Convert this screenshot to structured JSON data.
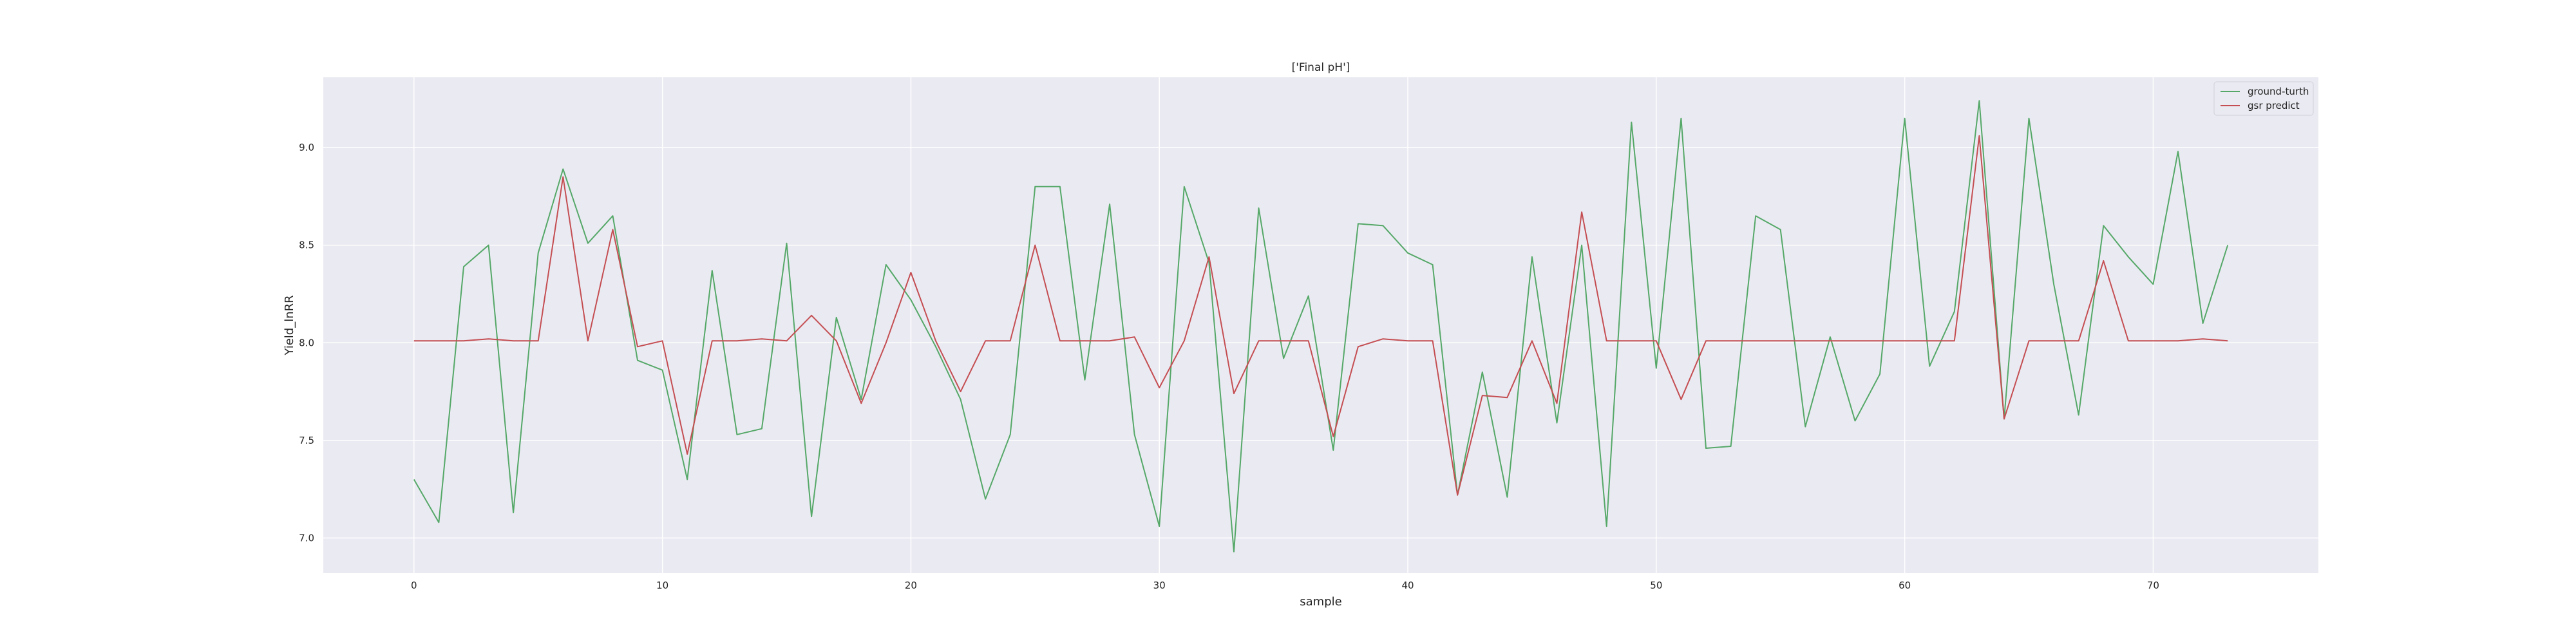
{
  "chart_data": {
    "type": "line",
    "title": "['Final pH']",
    "xlabel": "sample",
    "ylabel": "Yield_lnRR",
    "xlim": [
      -3.65,
      76.65
    ],
    "ylim": [
      6.82,
      9.36
    ],
    "xticks": [
      0,
      10,
      20,
      30,
      40,
      50,
      60,
      70
    ],
    "yticks": [
      7.0,
      7.5,
      8.0,
      8.5,
      9.0
    ],
    "xtick_labels": [
      "0",
      "10",
      "20",
      "30",
      "40",
      "50",
      "60",
      "70"
    ],
    "ytick_labels": [
      "7.0",
      "7.5",
      "8.0",
      "8.5",
      "9.0"
    ],
    "grid": true,
    "legend_position": "top-right",
    "series": [
      {
        "name": "ground-turth",
        "color": "#55a868",
        "values": [
          7.3,
          7.08,
          8.39,
          8.5,
          7.13,
          8.46,
          8.89,
          8.51,
          8.65,
          7.91,
          7.86,
          7.3,
          8.37,
          7.53,
          7.56,
          8.51,
          7.11,
          8.13,
          7.71,
          8.4,
          8.22,
          7.98,
          7.71,
          7.2,
          7.53,
          8.8,
          8.8,
          7.81,
          8.71,
          7.53,
          7.06,
          8.8,
          8.41,
          6.93,
          8.69,
          7.92,
          8.24,
          7.45,
          8.61,
          8.6,
          8.46,
          8.4,
          7.22,
          7.85,
          7.21,
          8.44,
          7.59,
          8.5,
          7.06,
          9.13,
          7.87,
          9.15,
          7.46,
          7.47,
          8.65,
          8.58,
          7.57,
          8.03,
          7.6,
          7.84,
          9.15,
          7.88,
          8.16,
          9.24,
          7.61,
          9.15,
          8.3,
          7.63,
          8.6,
          8.44,
          8.3,
          8.98,
          8.1,
          8.5
        ]
      },
      {
        "name": "gsr predict",
        "color": "#c44e52",
        "values": [
          8.01,
          8.01,
          8.01,
          8.02,
          8.01,
          8.01,
          8.85,
          8.01,
          8.58,
          7.98,
          8.01,
          7.43,
          8.01,
          8.01,
          8.02,
          8.01,
          8.14,
          8.01,
          7.69,
          8.0,
          8.36,
          8.01,
          7.75,
          8.01,
          8.01,
          8.5,
          8.01,
          8.01,
          8.01,
          8.03,
          7.77,
          8.01,
          8.44,
          7.74,
          8.01,
          8.01,
          8.01,
          7.52,
          7.98,
          8.02,
          8.01,
          8.01,
          7.22,
          7.73,
          7.72,
          8.01,
          7.69,
          8.67,
          8.01,
          8.01,
          8.01,
          7.71,
          8.01,
          8.01,
          8.01,
          8.01,
          8.01,
          8.01,
          8.01,
          8.01,
          8.01,
          8.01,
          8.01,
          9.06,
          7.61,
          8.01,
          8.01,
          8.01,
          8.42,
          8.01,
          8.01,
          8.01,
          8.02,
          8.01
        ]
      }
    ]
  }
}
